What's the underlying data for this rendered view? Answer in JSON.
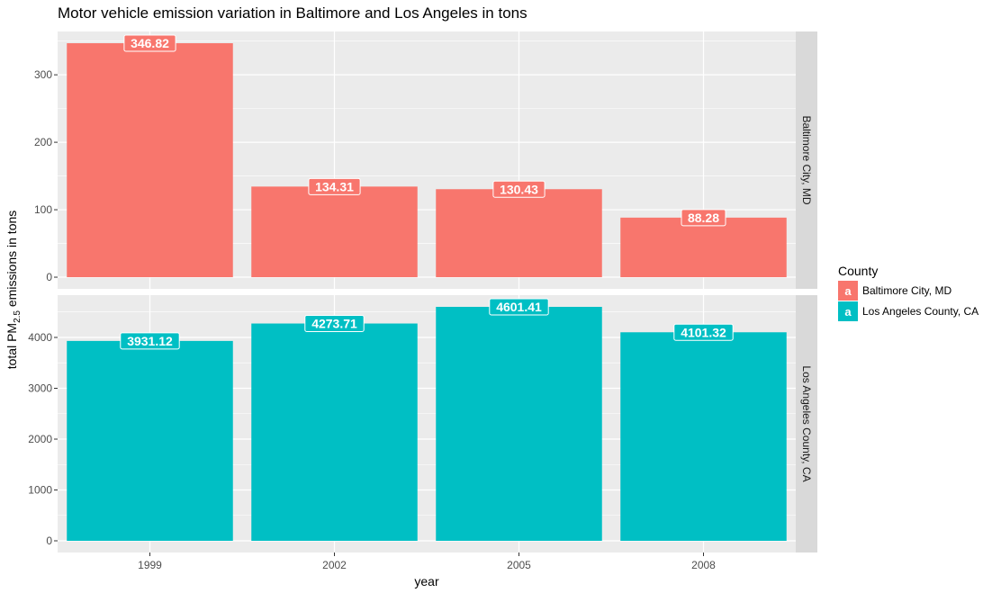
{
  "chart_data": {
    "type": "bar",
    "title": "Motor vehicle emission variation in Baltimore and Los Angeles in tons",
    "xlabel": "year",
    "ylabel": {
      "prefix": "total PM",
      "subscript": "2.5",
      "suffix": " emissions in tons"
    },
    "categories": [
      "1999",
      "2002",
      "2005",
      "2008"
    ],
    "grid": true,
    "legend": {
      "title": "County",
      "position": "right",
      "key_glyph": "a",
      "entries": [
        {
          "name": "Baltimore City, MD",
          "color": "#F8766D"
        },
        {
          "name": "Los Angeles County, CA",
          "color": "#00BFC4"
        }
      ]
    },
    "facets": [
      {
        "name": "Baltimore City, MD",
        "color": "#F8766D",
        "values": [
          346.82,
          134.31,
          130.43,
          88.28
        ],
        "labels": [
          "346.82",
          "134.31",
          "130.43",
          "88.28"
        ],
        "ylim": [
          -17.3,
          364.2
        ],
        "yticks": [
          0,
          100,
          200,
          300
        ]
      },
      {
        "name": "Los Angeles County, CA",
        "color": "#00BFC4",
        "values": [
          3931.12,
          4273.71,
          4601.41,
          4101.32
        ],
        "labels": [
          "3931.12",
          "4273.71",
          "4601.41",
          "4101.32"
        ],
        "ylim": [
          -230,
          4831.5
        ],
        "yticks": [
          0,
          1000,
          2000,
          3000,
          4000
        ]
      }
    ]
  }
}
